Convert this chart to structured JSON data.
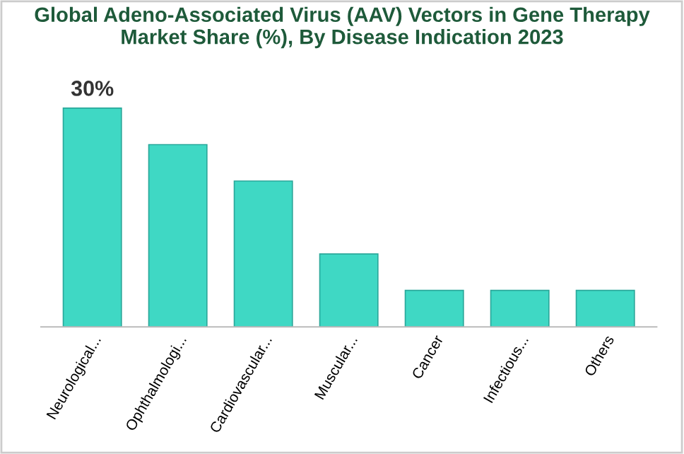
{
  "chart_data": {
    "type": "bar",
    "title": "Global Adeno-Associated Virus (AAV) Vectors in Gene Therapy\nMarket Share (%), By Disease Indication 2023",
    "categories": [
      "Neurological...",
      "Ophthalmologi...",
      "Cardiovascular...",
      "Muscular...",
      "Cancer",
      "Infectious...",
      "Others"
    ],
    "values": [
      30,
      25,
      20,
      10,
      5,
      5,
      5
    ],
    "value_labels": [
      "30%",
      null,
      null,
      null,
      null,
      null,
      null
    ],
    "color": "#3fd8c4",
    "grid": false
  }
}
